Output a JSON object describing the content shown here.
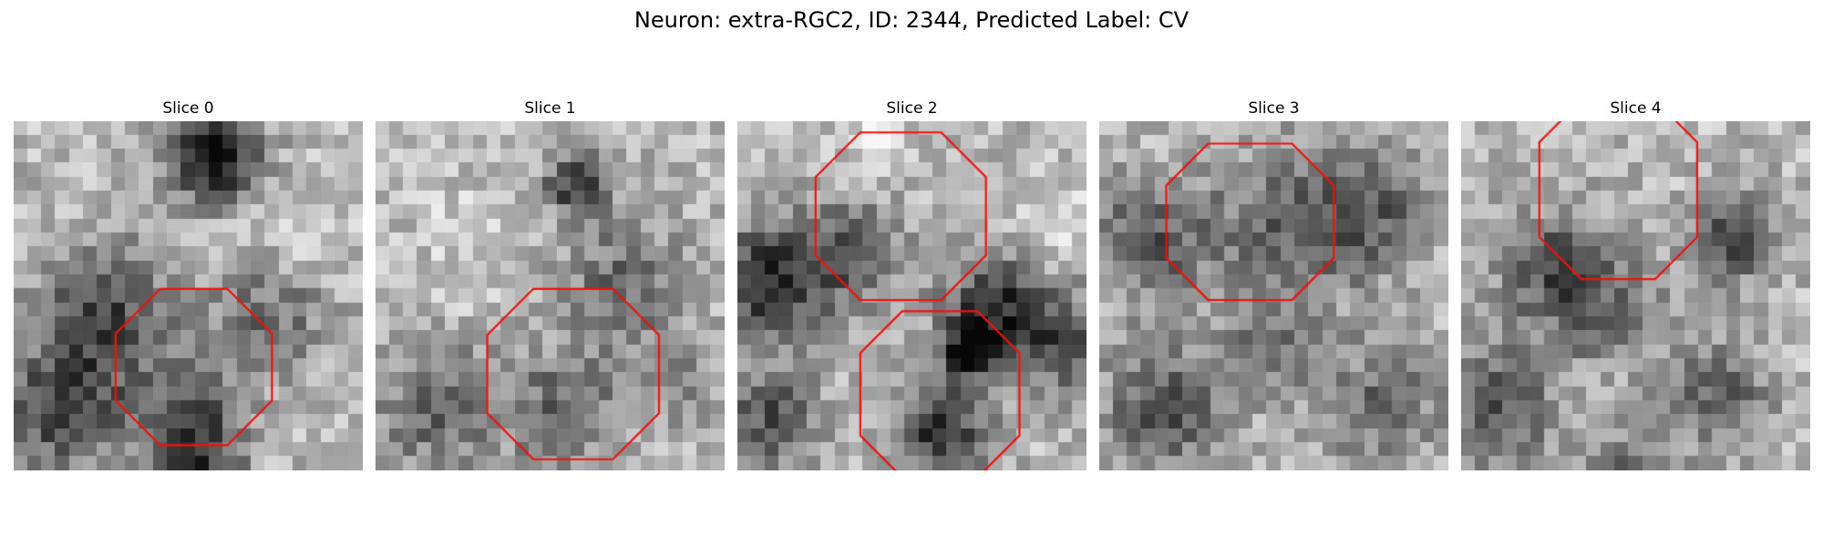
{
  "figure": {
    "title": "Neuron: extra-RGC2, ID: 2344, Predicted Label: CV",
    "contour_color": "#ee1111",
    "colormap": "grayscale"
  },
  "slices": [
    {
      "label": "Slice 0"
    },
    {
      "label": "Slice 1"
    },
    {
      "label": "Slice 2"
    },
    {
      "label": "Slice 3"
    },
    {
      "label": "Slice 4"
    }
  ]
}
